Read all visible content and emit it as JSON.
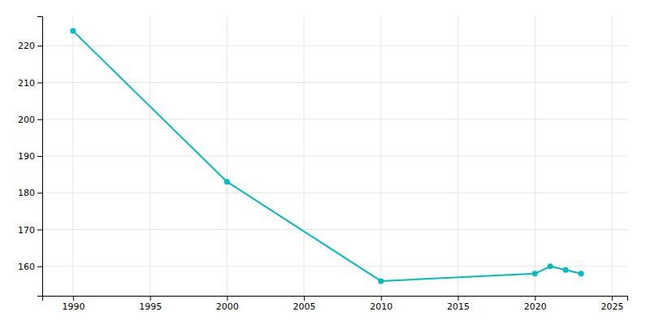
{
  "chart_data": {
    "type": "line",
    "x": [
      1990,
      2000,
      2010,
      2020,
      2021,
      2022,
      2023
    ],
    "values": [
      224,
      183,
      156,
      158,
      160,
      159,
      158
    ],
    "color": "#00BCBC",
    "marker": "circle",
    "xlim": [
      1988,
      2026
    ],
    "ylim": [
      152,
      228
    ],
    "xticks": [
      1990,
      1995,
      2000,
      2005,
      2010,
      2015,
      2020,
      2025
    ],
    "yticks": [
      160,
      170,
      180,
      190,
      200,
      210,
      220
    ],
    "grid": true
  }
}
